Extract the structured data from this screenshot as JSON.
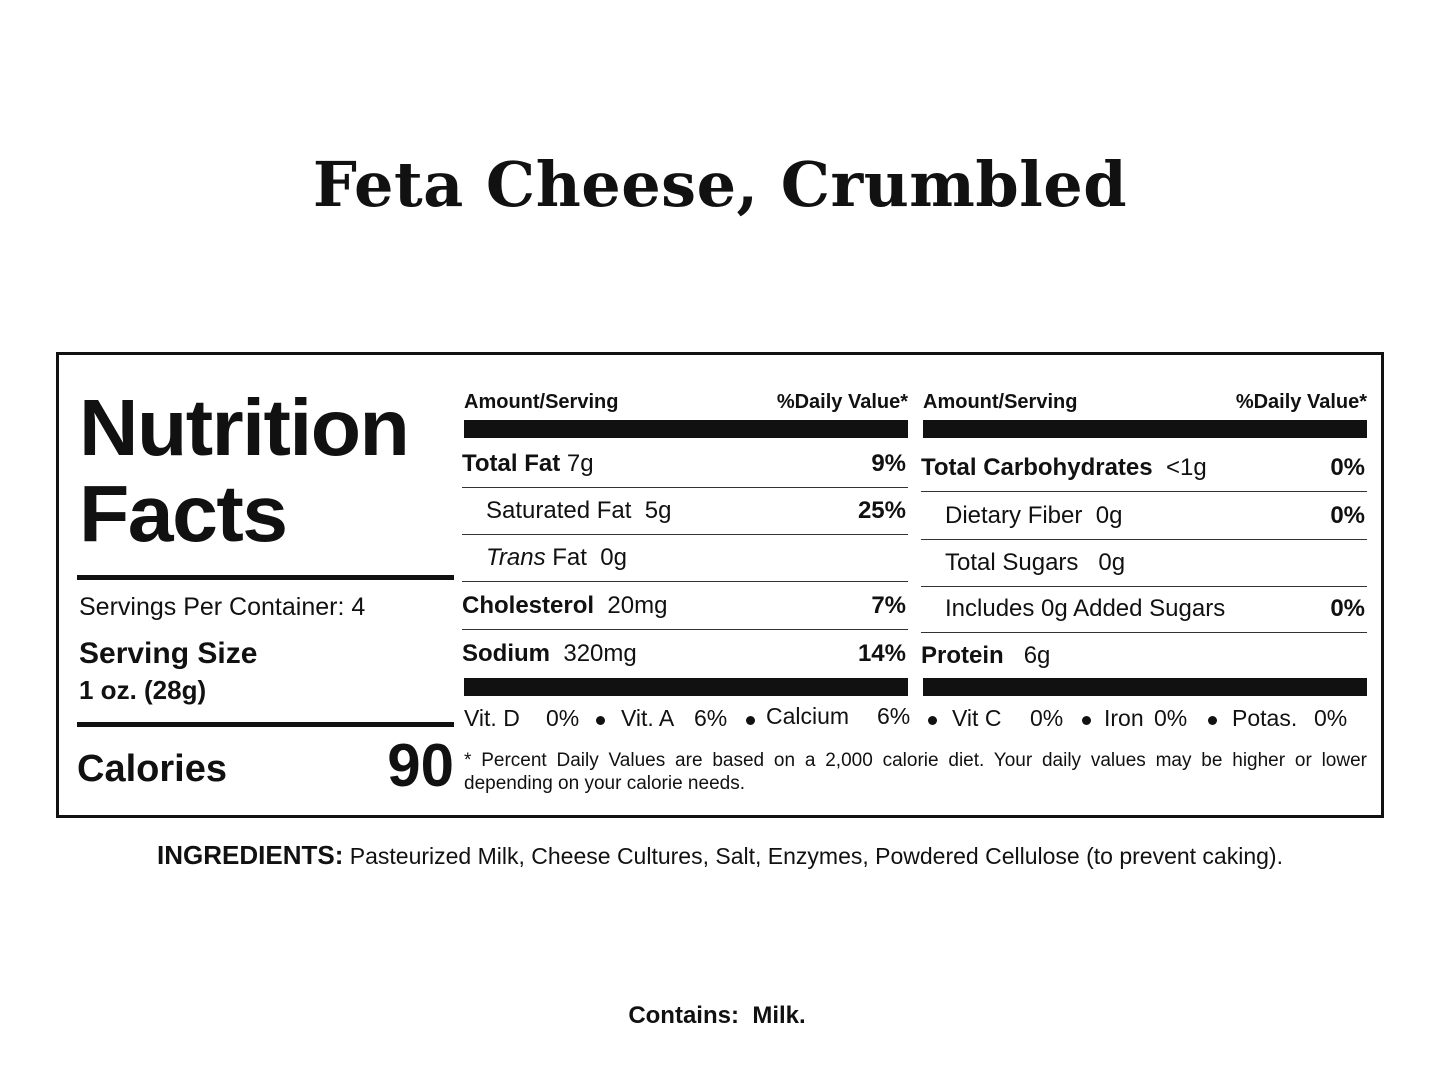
{
  "product": {
    "title": "Feta Cheese, Crumbled"
  },
  "label": {
    "title_line1": "Nutrition",
    "title_line2": "Facts",
    "servings_per_container": "Servings Per Container: 4",
    "serving_size_label": "Serving Size",
    "serving_size_value": "1 oz. (28g)",
    "calories_label": "Calories",
    "calories_value": "90",
    "header_amount": "Amount/Serving",
    "header_dv": "%Daily Value*",
    "left_column": [
      {
        "bold_name": "Total Fat",
        "amount": "7g",
        "dv": "9%"
      },
      {
        "name": "Saturated Fat",
        "amount": "5g",
        "dv": "25%"
      },
      {
        "italic_name": "Trans",
        "name": "Fat",
        "amount": "0g",
        "dv": ""
      },
      {
        "bold_name": "Cholesterol",
        "amount": "20mg",
        "dv": "7%"
      },
      {
        "bold_name": "Sodium",
        "amount": "320mg",
        "dv": "14%"
      }
    ],
    "right_column": [
      {
        "bold_name": "Total Carbohydrates",
        "amount": "<1g",
        "dv": "0%"
      },
      {
        "name": "Dietary Fiber",
        "amount": "0g",
        "dv": "0%"
      },
      {
        "name": "Total Sugars",
        "amount": "0g",
        "dv": ""
      },
      {
        "name": "Includes 0g Added Sugars",
        "amount": "",
        "dv": "0%"
      },
      {
        "bold_name": "Protein",
        "amount": "6g",
        "dv": ""
      }
    ],
    "vitamins": [
      {
        "name": "Vit. D",
        "value": "0%"
      },
      {
        "name": "Vit. A",
        "value": "6%"
      },
      {
        "name": "Calcium",
        "value": "6%"
      },
      {
        "name": "Vit C",
        "value": "0%"
      },
      {
        "name": "Iron",
        "value": "0%"
      },
      {
        "name": "Potas.",
        "value": "0%"
      }
    ],
    "footnote": "* Percent Daily Values are based on a 2,000 calorie diet. Your daily values may be higher or lower depending on your calorie needs."
  },
  "ingredients": {
    "label": "INGREDIENTS:",
    "text": "Pasteurized Milk, Cheese Cultures, Salt, Enzymes, Powdered Cellulose (to prevent caking)."
  },
  "allergens": {
    "label": "Contains:",
    "text": "Milk."
  }
}
